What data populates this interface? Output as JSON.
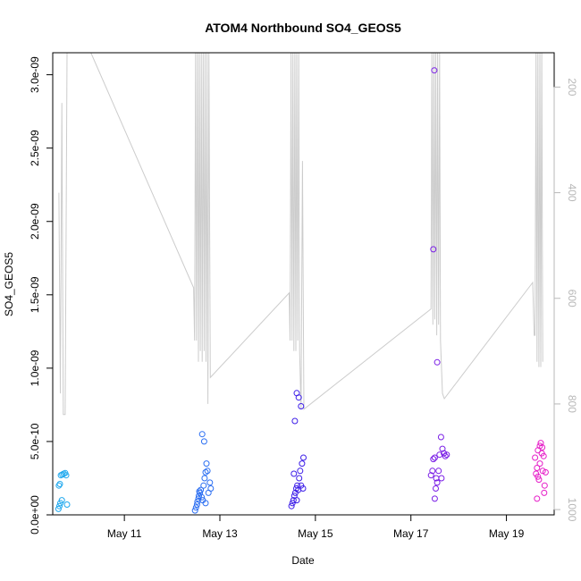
{
  "chart_data": {
    "type": "scatter",
    "title": "ATOM4 Northbound SO4_GEOS5",
    "xlabel": "Date",
    "ylabel": "SO4_GEOS5",
    "x_ticks": [
      "May 11",
      "May 13",
      "May 15",
      "May 17",
      "May 19"
    ],
    "y_ticks": [
      "0.0e+00",
      "5.0e-10",
      "1.0e-09",
      "1.5e-09",
      "2.0e-09",
      "2.5e-09",
      "3.0e-09"
    ],
    "y2_ticks": [
      "200",
      "400",
      "600",
      "800",
      "1000"
    ],
    "x_unit": "day of May",
    "xlim": [
      9.5,
      20.0
    ],
    "ylim": [
      0,
      3.15e-09
    ],
    "y2lim": [
      1010,
      135
    ],
    "y2_reversed": true,
    "points": [
      {
        "x": 9.63,
        "y": 2e-10,
        "color": "#1ea8ee"
      },
      {
        "x": 9.65,
        "y": 2.1e-10,
        "color": "#1ea8ee"
      },
      {
        "x": 9.67,
        "y": 2.7e-10,
        "color": "#1ea8ee"
      },
      {
        "x": 9.7,
        "y": 2.75e-10,
        "color": "#1ea8ee"
      },
      {
        "x": 9.73,
        "y": 2.8e-10,
        "color": "#1ea8ee"
      },
      {
        "x": 9.76,
        "y": 2.85e-10,
        "color": "#1ea8ee"
      },
      {
        "x": 9.78,
        "y": 2.7e-10,
        "color": "#1ea8ee"
      },
      {
        "x": 9.62,
        "y": 4e-11,
        "color": "#1ea8ee"
      },
      {
        "x": 9.64,
        "y": 6e-11,
        "color": "#1ea8ee"
      },
      {
        "x": 9.66,
        "y": 8e-11,
        "color": "#1ea8ee"
      },
      {
        "x": 9.69,
        "y": 1e-10,
        "color": "#1ea8ee"
      },
      {
        "x": 9.8,
        "y": 7e-11,
        "color": "#1ea8ee"
      },
      {
        "x": 12.48,
        "y": 3e-11,
        "color": "#2c6ff2"
      },
      {
        "x": 12.5,
        "y": 5e-11,
        "color": "#2c6ff2"
      },
      {
        "x": 12.52,
        "y": 7e-11,
        "color": "#2c6ff2"
      },
      {
        "x": 12.53,
        "y": 9e-11,
        "color": "#2c6ff2"
      },
      {
        "x": 12.55,
        "y": 1.1e-10,
        "color": "#2c6ff2"
      },
      {
        "x": 12.56,
        "y": 1.3e-10,
        "color": "#2c6ff2"
      },
      {
        "x": 12.58,
        "y": 1.5e-10,
        "color": "#2c6ff2"
      },
      {
        "x": 12.6,
        "y": 1.7e-10,
        "color": "#2c6ff2"
      },
      {
        "x": 12.62,
        "y": 1.2e-10,
        "color": "#2c6ff2"
      },
      {
        "x": 12.64,
        "y": 1e-10,
        "color": "#2c6ff2"
      },
      {
        "x": 12.66,
        "y": 2e-10,
        "color": "#2c6ff2"
      },
      {
        "x": 12.68,
        "y": 2.5e-10,
        "color": "#2c6ff2"
      },
      {
        "x": 12.7,
        "y": 2.9e-10,
        "color": "#2c6ff2"
      },
      {
        "x": 12.72,
        "y": 3.5e-10,
        "color": "#2c6ff2"
      },
      {
        "x": 12.74,
        "y": 3e-10,
        "color": "#2c6ff2"
      },
      {
        "x": 12.76,
        "y": 1.5e-10,
        "color": "#2c6ff2"
      },
      {
        "x": 12.79,
        "y": 2.2e-10,
        "color": "#2c6ff2"
      },
      {
        "x": 12.81,
        "y": 1.8e-10,
        "color": "#2c6ff2"
      },
      {
        "x": 12.63,
        "y": 5.5e-10,
        "color": "#2c6ff2"
      },
      {
        "x": 12.67,
        "y": 5e-10,
        "color": "#2c6ff2"
      },
      {
        "x": 12.57,
        "y": 1.6e-10,
        "color": "#2c6ff2"
      },
      {
        "x": 12.7,
        "y": 8e-11,
        "color": "#2c6ff2"
      },
      {
        "x": 14.5,
        "y": 6e-11,
        "color": "#3d1ee8"
      },
      {
        "x": 14.52,
        "y": 8e-11,
        "color": "#3d1ee8"
      },
      {
        "x": 14.54,
        "y": 1e-10,
        "color": "#3d1ee8"
      },
      {
        "x": 14.56,
        "y": 1.3e-10,
        "color": "#3d1ee8"
      },
      {
        "x": 14.58,
        "y": 1.5e-10,
        "color": "#3d1ee8"
      },
      {
        "x": 14.6,
        "y": 1.8e-10,
        "color": "#3d1ee8"
      },
      {
        "x": 14.62,
        "y": 2e-10,
        "color": "#3d1ee8"
      },
      {
        "x": 14.64,
        "y": 1.7e-10,
        "color": "#3d1ee8"
      },
      {
        "x": 14.66,
        "y": 2.5e-10,
        "color": "#3d1ee8"
      },
      {
        "x": 14.68,
        "y": 3e-10,
        "color": "#3d1ee8"
      },
      {
        "x": 14.7,
        "y": 2e-10,
        "color": "#3d1ee8"
      },
      {
        "x": 14.72,
        "y": 3.5e-10,
        "color": "#3d1ee8"
      },
      {
        "x": 14.75,
        "y": 3.9e-10,
        "color": "#3d1ee8"
      },
      {
        "x": 14.55,
        "y": 2.8e-10,
        "color": "#3d1ee8"
      },
      {
        "x": 14.61,
        "y": 1e-10,
        "color": "#3d1ee8"
      },
      {
        "x": 14.74,
        "y": 1.8e-10,
        "color": "#3d1ee8"
      },
      {
        "x": 14.57,
        "y": 6.4e-10,
        "color": "#3d1ee8"
      },
      {
        "x": 14.61,
        "y": 8.3e-10,
        "color": "#3d1ee8"
      },
      {
        "x": 14.65,
        "y": 8e-10,
        "color": "#3d1ee8"
      },
      {
        "x": 14.7,
        "y": 7.4e-10,
        "color": "#3d1ee8"
      },
      {
        "x": 17.42,
        "y": 2.7e-10,
        "color": "#7a1ee6"
      },
      {
        "x": 17.45,
        "y": 3e-10,
        "color": "#7a1ee6"
      },
      {
        "x": 17.47,
        "y": 3.8e-10,
        "color": "#7a1ee6"
      },
      {
        "x": 17.5,
        "y": 3.9e-10,
        "color": "#7a1ee6"
      },
      {
        "x": 17.53,
        "y": 2.5e-10,
        "color": "#7a1ee6"
      },
      {
        "x": 17.55,
        "y": 2.2e-10,
        "color": "#7a1ee6"
      },
      {
        "x": 17.58,
        "y": 3e-10,
        "color": "#7a1ee6"
      },
      {
        "x": 17.6,
        "y": 4.1e-10,
        "color": "#7a1ee6"
      },
      {
        "x": 17.63,
        "y": 5.3e-10,
        "color": "#7a1ee6"
      },
      {
        "x": 17.66,
        "y": 4.5e-10,
        "color": "#7a1ee6"
      },
      {
        "x": 17.69,
        "y": 4.2e-10,
        "color": "#7a1ee6"
      },
      {
        "x": 17.72,
        "y": 4e-10,
        "color": "#7a1ee6"
      },
      {
        "x": 17.75,
        "y": 4.1e-10,
        "color": "#7a1ee6"
      },
      {
        "x": 17.5,
        "y": 1.1e-10,
        "color": "#7a1ee6"
      },
      {
        "x": 17.52,
        "y": 1.8e-10,
        "color": "#7a1ee6"
      },
      {
        "x": 17.64,
        "y": 2.5e-10,
        "color": "#7a1ee6"
      },
      {
        "x": 17.49,
        "y": 3.03e-09,
        "color": "#7a1ee6"
      },
      {
        "x": 17.47,
        "y": 1.81e-09,
        "color": "#7a1ee6"
      },
      {
        "x": 17.55,
        "y": 1.04e-09,
        "color": "#7a1ee6"
      },
      {
        "x": 19.6,
        "y": 3.9e-10,
        "color": "#e61ec8"
      },
      {
        "x": 19.62,
        "y": 2.8e-10,
        "color": "#e61ec8"
      },
      {
        "x": 19.64,
        "y": 3.2e-10,
        "color": "#e61ec8"
      },
      {
        "x": 19.66,
        "y": 4.4e-10,
        "color": "#e61ec8"
      },
      {
        "x": 19.68,
        "y": 2.4e-10,
        "color": "#e61ec8"
      },
      {
        "x": 19.7,
        "y": 4.7e-10,
        "color": "#e61ec8"
      },
      {
        "x": 19.72,
        "y": 4.9e-10,
        "color": "#e61ec8"
      },
      {
        "x": 19.74,
        "y": 4.2e-10,
        "color": "#e61ec8"
      },
      {
        "x": 19.76,
        "y": 3e-10,
        "color": "#e61ec8"
      },
      {
        "x": 19.78,
        "y": 4e-10,
        "color": "#e61ec8"
      },
      {
        "x": 19.8,
        "y": 2e-10,
        "color": "#e61ec8"
      },
      {
        "x": 19.82,
        "y": 2.9e-10,
        "color": "#e61ec8"
      },
      {
        "x": 19.64,
        "y": 1.1e-10,
        "color": "#e61ec8"
      },
      {
        "x": 19.7,
        "y": 3.5e-10,
        "color": "#e61ec8"
      },
      {
        "x": 19.75,
        "y": 4.6e-10,
        "color": "#e61ec8"
      },
      {
        "x": 19.79,
        "y": 1.5e-10,
        "color": "#e61ec8"
      },
      {
        "x": 19.66,
        "y": 2.6e-10,
        "color": "#e61ec8"
      }
    ],
    "secondary_line": {
      "axis": "right",
      "color": "#cccccc",
      "points": [
        [
          9.63,
          400
        ],
        [
          9.66,
          780
        ],
        [
          9.69,
          230
        ],
        [
          9.72,
          820
        ],
        [
          9.76,
          820
        ],
        [
          9.8,
          135
        ],
        [
          10.3,
          135
        ],
        [
          12.45,
          580
        ],
        [
          12.47,
          680
        ],
        [
          12.49,
          135
        ],
        [
          12.51,
          680
        ],
        [
          12.53,
          135
        ],
        [
          12.55,
          720
        ],
        [
          12.57,
          135
        ],
        [
          12.59,
          700
        ],
        [
          12.61,
          135
        ],
        [
          12.63,
          720
        ],
        [
          12.65,
          135
        ],
        [
          12.67,
          700
        ],
        [
          12.69,
          135
        ],
        [
          12.71,
          720
        ],
        [
          12.73,
          135
        ],
        [
          12.75,
          800
        ],
        [
          12.77,
          135
        ],
        [
          12.8,
          750
        ],
        [
          14.45,
          590
        ],
        [
          14.47,
          680
        ],
        [
          14.49,
          135
        ],
        [
          14.51,
          680
        ],
        [
          14.53,
          135
        ],
        [
          14.55,
          700
        ],
        [
          14.57,
          135
        ],
        [
          14.59,
          700
        ],
        [
          14.61,
          135
        ],
        [
          14.63,
          680
        ],
        [
          14.65,
          135
        ],
        [
          14.67,
          700
        ],
        [
          14.7,
          810
        ],
        [
          14.73,
          340
        ],
        [
          14.76,
          810
        ],
        [
          17.42,
          620
        ],
        [
          17.44,
          135
        ],
        [
          17.46,
          650
        ],
        [
          17.48,
          135
        ],
        [
          17.5,
          640
        ],
        [
          17.52,
          135
        ],
        [
          17.54,
          670
        ],
        [
          17.56,
          135
        ],
        [
          17.58,
          650
        ],
        [
          17.6,
          135
        ],
        [
          17.62,
          680
        ],
        [
          17.66,
          780
        ],
        [
          17.7,
          790
        ],
        [
          19.55,
          570
        ],
        [
          19.58,
          670
        ],
        [
          19.6,
          670
        ],
        [
          19.62,
          135
        ],
        [
          19.64,
          720
        ],
        [
          19.66,
          135
        ],
        [
          19.68,
          730
        ],
        [
          19.7,
          135
        ],
        [
          19.72,
          730
        ],
        [
          19.74,
          135
        ],
        [
          19.76,
          720
        ]
      ]
    }
  }
}
